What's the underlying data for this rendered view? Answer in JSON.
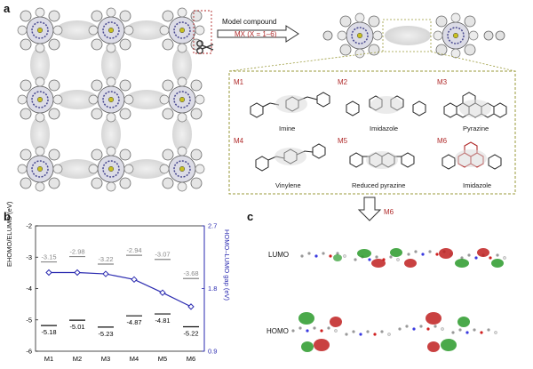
{
  "panels": {
    "a": "a",
    "b": "b",
    "c": "c"
  },
  "model_compound": {
    "line1": "Model compound",
    "line2": "MX (X = 1–6)"
  },
  "molecules": [
    {
      "code": "M1",
      "name": "Imine"
    },
    {
      "code": "M2",
      "name": "Imidazole"
    },
    {
      "code": "M3",
      "name": "Pyrazine"
    },
    {
      "code": "M4",
      "name": "Vinylene"
    },
    {
      "code": "M5",
      "name": "Reduced pyrazine"
    },
    {
      "code": "M6",
      "name": "Imidazole"
    }
  ],
  "arrow_label": "M6",
  "orbitals": {
    "lumo": "LUMO",
    "homo": "HOMO"
  },
  "colors": {
    "accent_red": "#b02a2a",
    "gap_line": "#2a2ab0",
    "dashed_box": "#9a9a3a"
  },
  "chart_data": {
    "type": "line",
    "categories": [
      "M1",
      "M2",
      "M3",
      "M4",
      "M5",
      "M6"
    ],
    "ylabel": "EHOMO/ELUMO (eV)",
    "y2label": "HOMO–LUMO gap (eV)",
    "ylim": [
      -6,
      -2
    ],
    "y2lim": [
      0.9,
      2.7
    ],
    "yticks": [
      "-2",
      "-3",
      "-4",
      "-5",
      "-6"
    ],
    "y2ticks": [
      "2.7",
      "1.8",
      "0.9"
    ],
    "lumo": [
      -3.15,
      -2.98,
      -3.22,
      -2.94,
      -3.07,
      -3.68
    ],
    "lumo_labels": [
      "-3.15",
      "-2.98",
      "-3.22",
      "-2.94",
      "-3.07",
      "-3.68"
    ],
    "homo": [
      -5.18,
      -5.01,
      -5.23,
      -4.87,
      -4.81,
      -5.22
    ],
    "homo_labels": [
      "-5.18",
      "-5.01",
      "-5.23",
      "-4.87",
      "-4.81",
      "-5.22"
    ],
    "gap": [
      2.03,
      2.03,
      2.01,
      1.93,
      1.74,
      1.54
    ]
  }
}
